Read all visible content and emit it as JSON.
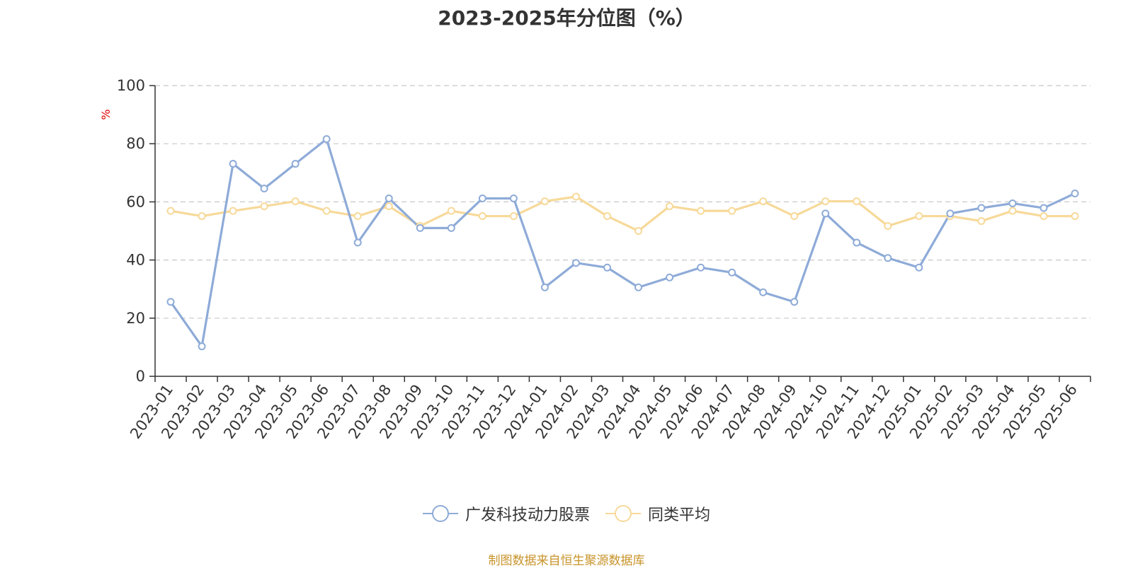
{
  "title": "2023-2025年分位图（%）",
  "source_note": "制图数据来自恒生聚源数据库",
  "chart_data": {
    "type": "line",
    "y_unit": "%",
    "ylim": [
      0,
      100
    ],
    "y_ticks": [
      0,
      20,
      40,
      60,
      80,
      100
    ],
    "grid": true,
    "legend_position": "bottom",
    "categories": [
      "2023-01",
      "2023-02",
      "2023-03",
      "2023-04",
      "2023-05",
      "2023-06",
      "2023-07",
      "2023-08",
      "2023-09",
      "2023-10",
      "2023-11",
      "2023-12",
      "2024-01",
      "2024-02",
      "2024-03",
      "2024-04",
      "2024-05",
      "2024-06",
      "2024-07",
      "2024-08",
      "2024-09",
      "2024-10",
      "2024-11",
      "2024-12",
      "2025-01",
      "2025-02",
      "2025-03",
      "2025-04",
      "2025-05",
      "2025-06"
    ],
    "series": [
      {
        "name": "广发科技动力股票",
        "color": "#8eabd8",
        "values": [
          25.6,
          10.3,
          73.1,
          64.6,
          73.1,
          81.6,
          46.0,
          61.2,
          51.0,
          51.0,
          61.2,
          61.2,
          30.6,
          39.0,
          37.4,
          30.6,
          34.0,
          37.4,
          35.7,
          28.9,
          25.6,
          56.0,
          46.0,
          40.7,
          37.4,
          56.0,
          57.9,
          59.5,
          57.9,
          62.9
        ]
      },
      {
        "name": "同类平均",
        "color": "#f7d999",
        "values": [
          56.9,
          55.1,
          56.9,
          58.5,
          60.2,
          56.9,
          55.1,
          58.5,
          51.7,
          56.9,
          55.1,
          55.1,
          60.2,
          61.8,
          55.1,
          50.0,
          58.5,
          56.9,
          56.9,
          60.2,
          55.1,
          60.2,
          60.2,
          51.7,
          55.1,
          55.1,
          53.4,
          56.9,
          55.1,
          55.1
        ]
      }
    ]
  }
}
